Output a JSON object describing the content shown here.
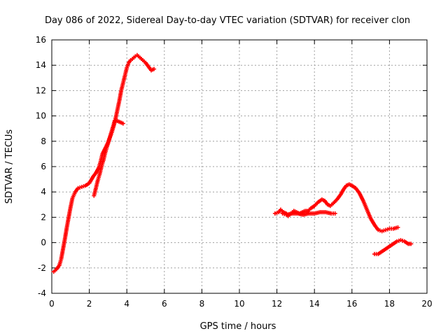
{
  "chart_data": {
    "type": "scatter",
    "title": "Day 086 of 2022, Sidereal Day-to-day VTEC variation (SDTVAR) for receiver clon",
    "xlabel": "GPS time / hours",
    "ylabel": "SDTVAR / TECUs",
    "xlim": [
      0,
      20
    ],
    "ylim": [
      -4,
      16
    ],
    "xticks": [
      "0",
      "2",
      "4",
      "6",
      "8",
      "10",
      "12",
      "14",
      "16",
      "18",
      "20"
    ],
    "yticks": [
      "-4",
      "-2",
      "0",
      "2",
      "4",
      "6",
      "8",
      "10",
      "12",
      "14",
      "16"
    ],
    "grid": true,
    "marker": "plus",
    "color": "#ff0000",
    "series": [
      {
        "name": "segment-1",
        "points": [
          [
            0.1,
            -2.3
          ],
          [
            0.25,
            -2.1
          ],
          [
            0.4,
            -1.8
          ],
          [
            0.5,
            -1.3
          ],
          [
            0.6,
            -0.5
          ],
          [
            0.7,
            0.3
          ],
          [
            0.8,
            1.2
          ],
          [
            0.9,
            2.0
          ],
          [
            1.0,
            2.8
          ],
          [
            1.1,
            3.5
          ],
          [
            1.25,
            4.0
          ],
          [
            1.4,
            4.3
          ],
          [
            1.6,
            4.4
          ],
          [
            1.8,
            4.5
          ],
          [
            2.0,
            4.7
          ],
          [
            2.2,
            5.2
          ],
          [
            2.35,
            5.5
          ],
          [
            2.5,
            5.9
          ],
          [
            2.6,
            6.4
          ],
          [
            2.7,
            7.0
          ],
          [
            2.8,
            7.3
          ],
          [
            2.9,
            7.6
          ],
          [
            3.0,
            7.9
          ],
          [
            3.1,
            8.3
          ],
          [
            3.2,
            8.7
          ],
          [
            3.3,
            9.2
          ],
          [
            3.4,
            9.8
          ],
          [
            3.5,
            10.5
          ],
          [
            3.6,
            11.2
          ],
          [
            3.7,
            12.0
          ],
          [
            3.8,
            12.6
          ],
          [
            3.9,
            13.2
          ],
          [
            4.0,
            13.8
          ],
          [
            4.1,
            14.2
          ],
          [
            4.2,
            14.4
          ],
          [
            4.3,
            14.5
          ],
          [
            4.45,
            14.7
          ],
          [
            4.55,
            14.8
          ],
          [
            4.7,
            14.6
          ],
          [
            4.85,
            14.4
          ],
          [
            5.0,
            14.2
          ],
          [
            5.15,
            13.9
          ],
          [
            5.3,
            13.6
          ],
          [
            5.45,
            13.7
          ]
        ]
      },
      {
        "name": "segment-2",
        "points": [
          [
            2.25,
            3.7
          ],
          [
            2.35,
            4.3
          ],
          [
            2.45,
            4.9
          ],
          [
            2.55,
            5.4
          ],
          [
            2.65,
            6.0
          ],
          [
            2.75,
            6.5
          ],
          [
            2.85,
            7.1
          ],
          [
            2.95,
            7.6
          ],
          [
            3.05,
            8.1
          ],
          [
            3.15,
            8.6
          ],
          [
            3.25,
            9.1
          ],
          [
            3.35,
            9.6
          ],
          [
            3.5,
            9.6
          ],
          [
            3.65,
            9.5
          ],
          [
            3.8,
            9.4
          ]
        ]
      },
      {
        "name": "segment-3",
        "points": [
          [
            11.9,
            2.3
          ],
          [
            12.1,
            2.4
          ],
          [
            12.2,
            2.6
          ],
          [
            12.35,
            2.4
          ],
          [
            12.5,
            2.3
          ],
          [
            12.6,
            2.1
          ],
          [
            12.75,
            2.3
          ],
          [
            12.9,
            2.5
          ],
          [
            13.05,
            2.4
          ],
          [
            13.2,
            2.3
          ],
          [
            13.35,
            2.4
          ],
          [
            13.5,
            2.5
          ],
          [
            13.65,
            2.5
          ],
          [
            13.8,
            2.7
          ],
          [
            14.0,
            2.9
          ],
          [
            14.2,
            3.2
          ],
          [
            14.4,
            3.4
          ],
          [
            14.55,
            3.3
          ],
          [
            14.7,
            3.0
          ],
          [
            14.85,
            2.9
          ],
          [
            15.0,
            3.1
          ],
          [
            15.2,
            3.4
          ],
          [
            15.4,
            3.8
          ],
          [
            15.55,
            4.2
          ],
          [
            15.7,
            4.5
          ],
          [
            15.85,
            4.6
          ],
          [
            16.0,
            4.5
          ],
          [
            16.2,
            4.3
          ],
          [
            16.4,
            3.9
          ],
          [
            16.6,
            3.3
          ],
          [
            16.8,
            2.6
          ],
          [
            17.0,
            1.9
          ],
          [
            17.2,
            1.4
          ],
          [
            17.4,
            1.0
          ],
          [
            17.6,
            0.9
          ],
          [
            17.8,
            1.0
          ],
          [
            18.0,
            1.1
          ],
          [
            18.2,
            1.1
          ],
          [
            18.45,
            1.2
          ]
        ]
      },
      {
        "name": "segment-4",
        "points": [
          [
            12.3,
            2.3
          ],
          [
            12.5,
            2.2
          ],
          [
            12.8,
            2.3
          ],
          [
            13.1,
            2.3
          ],
          [
            13.4,
            2.2
          ],
          [
            13.7,
            2.3
          ],
          [
            14.0,
            2.3
          ],
          [
            14.3,
            2.4
          ],
          [
            14.6,
            2.4
          ],
          [
            14.9,
            2.3
          ],
          [
            15.1,
            2.3
          ]
        ]
      },
      {
        "name": "segment-5",
        "points": [
          [
            17.2,
            -0.9
          ],
          [
            17.4,
            -0.9
          ],
          [
            17.6,
            -0.7
          ],
          [
            17.8,
            -0.5
          ],
          [
            18.0,
            -0.3
          ],
          [
            18.2,
            -0.1
          ],
          [
            18.4,
            0.1
          ],
          [
            18.6,
            0.2
          ],
          [
            18.8,
            0.1
          ],
          [
            19.0,
            -0.1
          ],
          [
            19.15,
            -0.1
          ]
        ]
      }
    ]
  }
}
